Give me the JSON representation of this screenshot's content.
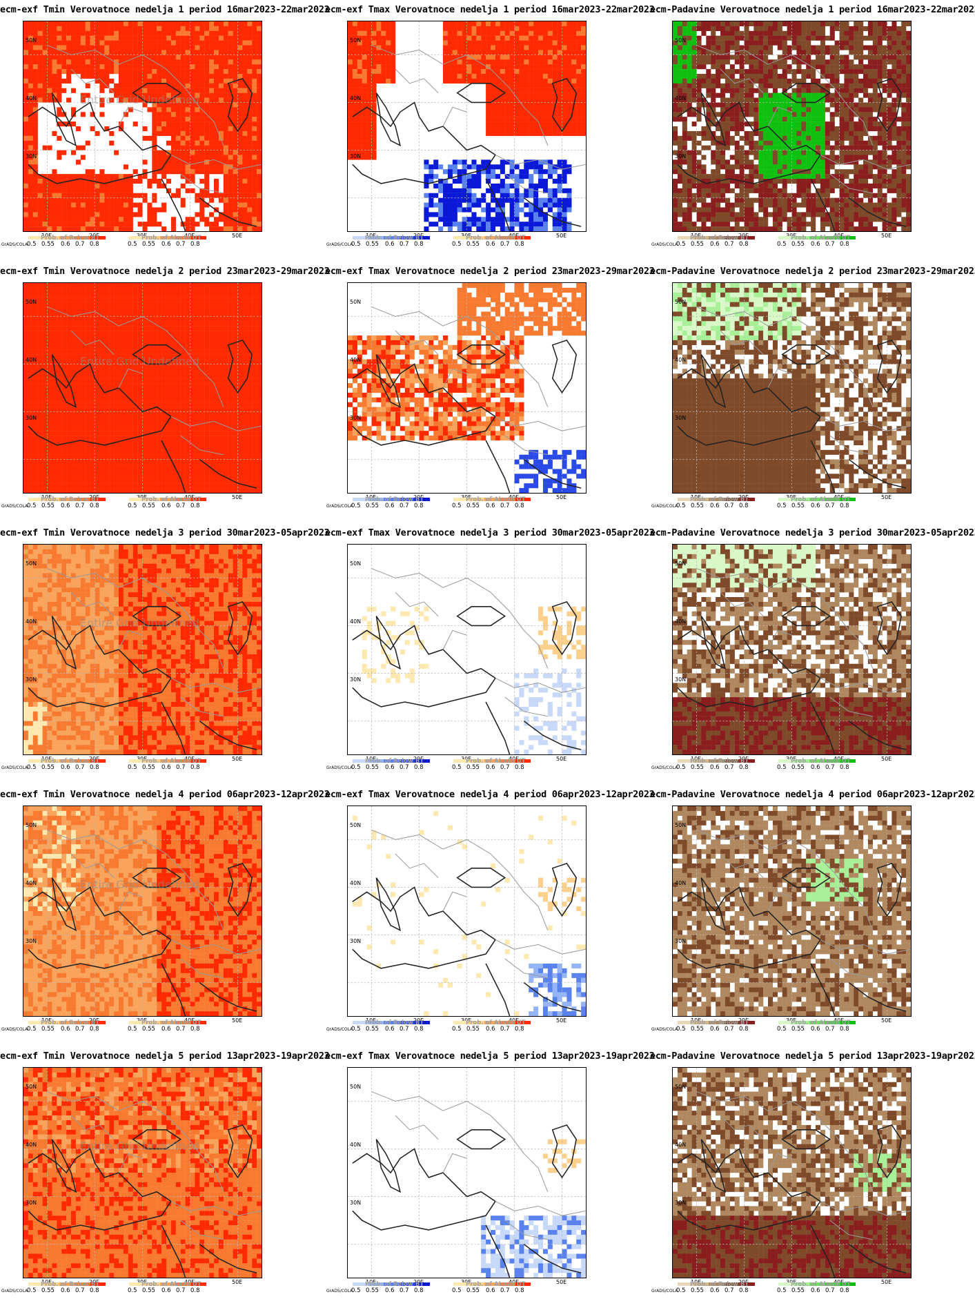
{
  "x_ticks": [
    "10E",
    "20E",
    "30E",
    "40E",
    "50E"
  ],
  "y_ticks": [
    "50N",
    "40N",
    "30N"
  ],
  "undefined_text": "Entire Grid Undefined",
  "grads_credit": "GrADS/COLA",
  "legends": {
    "below_title": "Prob. of Below BT",
    "above_title": "Prob. of Above UT",
    "ticks": [
      "0.5",
      "0.55",
      "0.6",
      "0.7",
      "0.8"
    ]
  },
  "colors": {
    "red_scale": [
      "#fde8b0",
      "#fbd08c",
      "#f9a45c",
      "#f87a30",
      "#ff2a00"
    ],
    "blue_scale": [
      "#c8d8f8",
      "#94b4f6",
      "#5a82ee",
      "#2a4ae8",
      "#0a18d8"
    ],
    "tan_scale": [
      "#e8d8b8",
      "#d6b88a",
      "#b08860",
      "#7e4a2a",
      "#8a1e1e"
    ],
    "green_scale": [
      "#d8f8c8",
      "#a8f098",
      "#70e060",
      "#40d030",
      "#10c010"
    ]
  },
  "panels": [
    {
      "title": "ecm-exf Tmin Verovatnoce nedelja 1 period 16mar2023-22mar2023",
      "variable": "tmin",
      "week": 1,
      "undefined": true,
      "legend_left": "below",
      "legend_right": "above"
    },
    {
      "title": "ecm-exf Tmax Verovatnoce nedelja 1 period 16mar2023-22mar2023",
      "variable": "tmax",
      "week": 1,
      "undefined": false,
      "legend_left": "below",
      "legend_right": "above"
    },
    {
      "title": "ecm-Padavine Verovatnoce nedelja 1 period 16mar2023-22mar2023",
      "variable": "precip",
      "week": 1,
      "undefined": false,
      "legend_left": "below",
      "legend_right": "above"
    },
    {
      "title": "ecm-exf Tmin Verovatnoce nedelja 2 period 23mar2023-29mar2023",
      "variable": "tmin",
      "week": 2,
      "undefined": true,
      "legend_left": "below",
      "legend_right": "above"
    },
    {
      "title": "ecm-exf Tmax Verovatnoce nedelja 2 period 23mar2023-29mar2023",
      "variable": "tmax",
      "week": 2,
      "undefined": false,
      "legend_left": "below",
      "legend_right": "above"
    },
    {
      "title": "ecm-Padavine Verovatnoce nedelja 2 period 23mar2023-29mar2023",
      "variable": "precip",
      "week": 2,
      "undefined": false,
      "legend_left": "below",
      "legend_right": "above"
    },
    {
      "title": "ecm-exf Tmin Verovatnoce nedelja 3 period 30mar2023-05apr2023",
      "variable": "tmin",
      "week": 3,
      "undefined": true,
      "legend_left": "below",
      "legend_right": "above"
    },
    {
      "title": "ecm-exf Tmax Verovatnoce nedelja 3 period 30mar2023-05apr2023",
      "variable": "tmax",
      "week": 3,
      "undefined": false,
      "legend_left": "below",
      "legend_right": "above"
    },
    {
      "title": "ecm-Padavine Verovatnoce nedelja 3 period 30mar2023-05apr2023",
      "variable": "precip",
      "week": 3,
      "undefined": false,
      "legend_left": "below",
      "legend_right": "above"
    },
    {
      "title": "ecm-exf Tmin Verovatnoce nedelja 4 period 06apr2023-12apr2023",
      "variable": "tmin",
      "week": 4,
      "undefined": true,
      "legend_left": "below",
      "legend_right": "above"
    },
    {
      "title": "ecm-exf Tmax Verovatnoce nedelja 4 period 06apr2023-12apr2023",
      "variable": "tmax",
      "week": 4,
      "undefined": false,
      "legend_left": "below",
      "legend_right": "above"
    },
    {
      "title": "ecm-Padavine Verovatnoce nedelja 4 period 06apr2023-12apr2023",
      "variable": "precip",
      "week": 4,
      "undefined": false,
      "legend_left": "below",
      "legend_right": "above"
    },
    {
      "title": "ecm-exf Tmin Verovatnoce nedelja 5 period 13apr2023-19apr2023",
      "variable": "tmin",
      "week": 5,
      "undefined": true,
      "legend_left": "below",
      "legend_right": "above"
    },
    {
      "title": "ecm-exf Tmax Verovatnoce nedelja 5 period 13apr2023-19apr2023",
      "variable": "tmax",
      "week": 5,
      "undefined": false,
      "legend_left": "below",
      "legend_right": "above"
    },
    {
      "title": "ecm-Padavine Verovatnoce nedelja 5 period 13apr2023-19apr2023",
      "variable": "precip",
      "week": 5,
      "undefined": false,
      "legend_left": "below",
      "legend_right": "above"
    }
  ]
}
